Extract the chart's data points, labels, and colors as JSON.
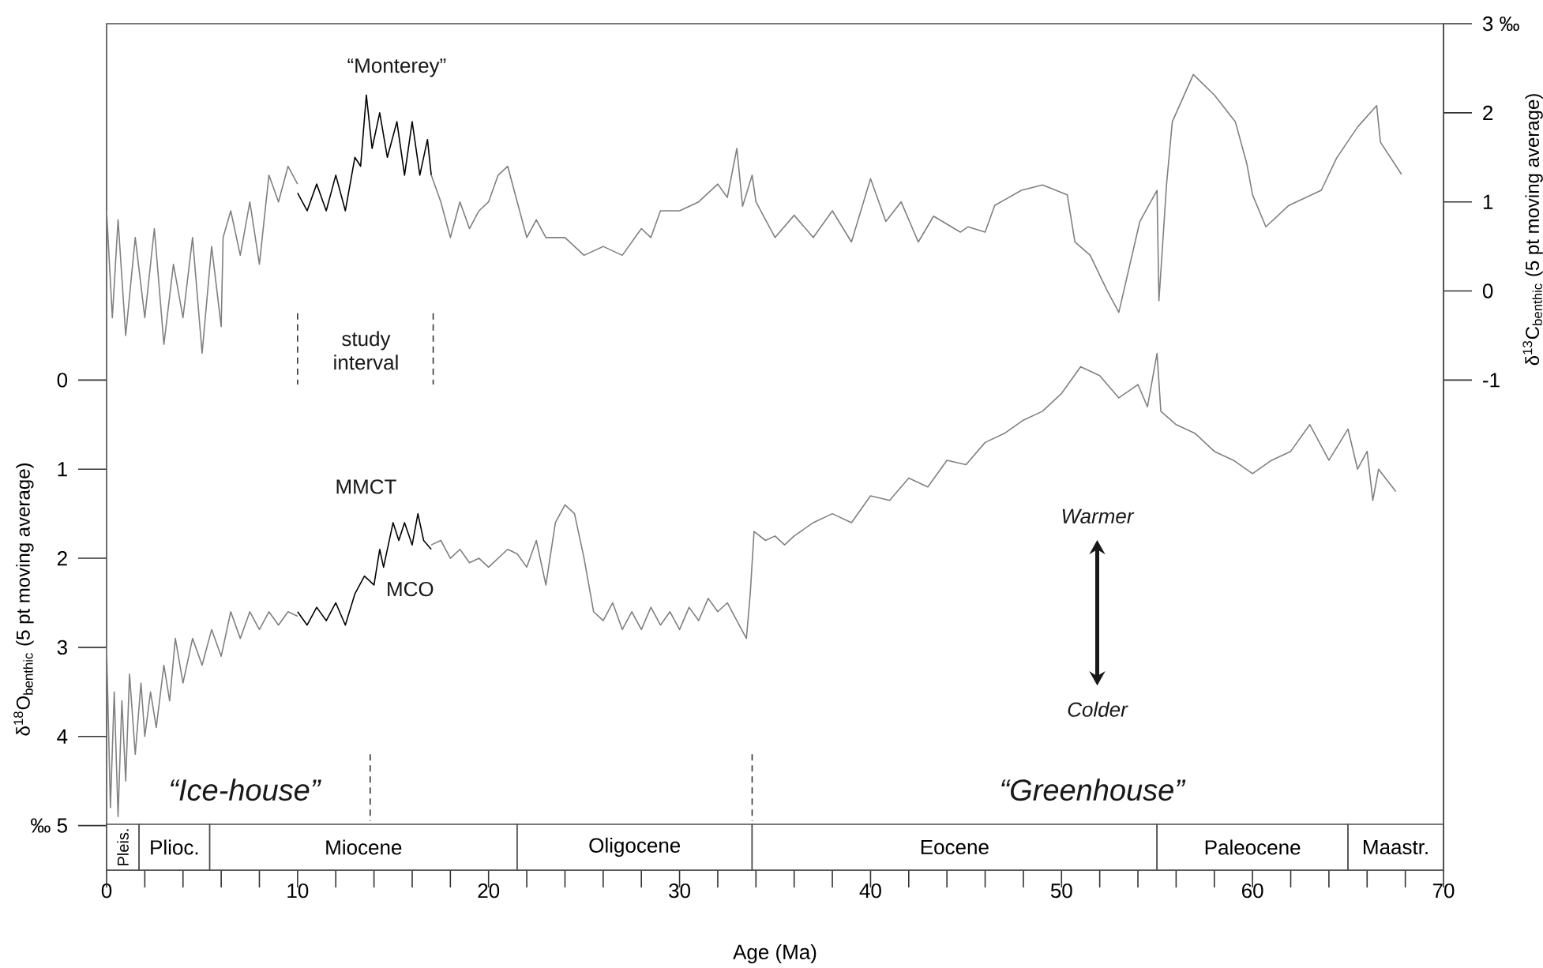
{
  "chart_data": {
    "type": "line",
    "xlabel": "Age (Ma)",
    "ylabel": "δ$^{18}$O$_{benthic}$ (5 pt moving average)",
    "y2label": "δ$^{13}$C$_{benthic}$ (5 pt moving average)",
    "xlim": [
      0,
      70
    ],
    "ylim": [
      5.5,
      -4
    ],
    "y2lim": [
      -6.5,
      3
    ],
    "xticks": [
      0,
      {
        "value": 2,
        "label": null
      },
      {
        "value": 4,
        "label": null
      },
      {
        "value": 6,
        "label": null
      },
      {
        "value": 8,
        "label": null
      },
      10,
      {
        "value": 12,
        "label": null
      },
      {
        "value": 14,
        "label": null
      },
      {
        "value": 16,
        "label": null
      },
      {
        "value": 18,
        "label": null
      },
      20,
      {
        "value": 22,
        "label": null
      },
      {
        "value": 24,
        "label": null
      },
      {
        "value": 26,
        "label": null
      },
      {
        "value": 28,
        "label": null
      },
      30,
      {
        "value": 32,
        "label": null
      },
      {
        "value": 34,
        "label": null
      },
      {
        "value": 36,
        "label": null
      },
      {
        "value": 38,
        "label": null
      },
      40,
      {
        "value": 42,
        "label": null
      },
      {
        "value": 44,
        "label": null
      },
      {
        "value": 46,
        "label": null
      },
      {
        "value": 48,
        "label": null
      },
      50,
      {
        "value": 52,
        "label": null
      },
      {
        "value": 54,
        "label": null
      },
      {
        "value": 56,
        "label": null
      },
      {
        "value": 58,
        "label": null
      },
      60,
      {
        "value": 62,
        "label": null
      },
      {
        "value": 64,
        "label": null
      },
      {
        "value": 66,
        "label": null
      },
      {
        "value": 68,
        "label": null
      },
      70
    ],
    "yticks": [
      0,
      1,
      2,
      3,
      4,
      {
        "value": 5,
        "label": "‰ 5"
      }
    ],
    "y2ticks": [
      -1,
      0,
      1,
      2,
      {
        "value": 3,
        "label": "3 ‰"
      }
    ],
    "series": [
      {
        "axis": "y",
        "color": "#808080",
        "x": [
          0,
          0.2,
          0.4,
          0.6,
          0.8,
          1.0,
          1.2,
          1.5,
          1.8,
          2.0,
          2.3,
          2.6,
          3.0,
          3.3,
          3.6,
          4.0,
          4.5,
          5.0,
          5.5,
          6.0,
          6.5,
          7.0,
          7.5,
          8.0,
          8.5,
          9,
          9.5,
          10
        ],
        "values": [
          3.0,
          4.8,
          3.5,
          4.9,
          3.6,
          4.5,
          3.3,
          4.2,
          3.4,
          4.0,
          3.5,
          3.9,
          3.2,
          3.6,
          2.9,
          3.4,
          2.9,
          3.2,
          2.8,
          3.1,
          2.6,
          2.9,
          2.6,
          2.8,
          2.6,
          2.75,
          2.6,
          2.65
        ]
      },
      {
        "axis": "y",
        "color": "#000000",
        "x": [
          10,
          10.5,
          11,
          11.5,
          12,
          12.5,
          13,
          13.5,
          14,
          14.3,
          14.5,
          15,
          15.3,
          15.6,
          16,
          16.3,
          16.6,
          17
        ],
        "values": [
          2.6,
          2.75,
          2.55,
          2.7,
          2.5,
          2.75,
          2.4,
          2.2,
          2.3,
          1.9,
          2.1,
          1.6,
          1.8,
          1.6,
          1.85,
          1.5,
          1.8,
          1.9
        ]
      },
      {
        "axis": "y",
        "color": "#808080",
        "x": [
          17,
          17.5,
          18,
          18.5,
          19,
          19.5,
          20,
          20.5,
          21,
          21.5,
          22,
          22.5,
          23,
          23.5,
          24,
          24.5,
          25,
          25.5,
          26,
          26.5,
          27,
          27.5,
          28,
          28.5,
          29,
          29.5,
          30,
          30.5,
          31,
          31.5,
          32,
          32.5,
          33,
          33.5,
          33.7,
          33.9,
          34.5,
          35,
          35.5,
          36,
          37,
          38,
          39,
          40,
          41,
          42,
          43,
          44,
          45,
          46,
          47,
          48,
          49,
          50,
          51,
          52,
          53,
          54,
          54.5,
          55,
          55.2,
          56,
          57,
          58,
          59,
          60,
          61,
          62,
          63,
          64,
          65,
          65.5,
          66,
          66.3,
          66.6,
          67.5
        ],
        "values": [
          1.85,
          1.8,
          2.0,
          1.9,
          2.05,
          2.0,
          2.1,
          2.0,
          1.9,
          1.95,
          2.1,
          1.8,
          2.3,
          1.6,
          1.4,
          1.5,
          2.0,
          2.6,
          2.7,
          2.5,
          2.8,
          2.6,
          2.8,
          2.55,
          2.75,
          2.6,
          2.8,
          2.55,
          2.7,
          2.45,
          2.6,
          2.5,
          2.7,
          2.9,
          2.4,
          1.7,
          1.8,
          1.75,
          1.85,
          1.75,
          1.6,
          1.5,
          1.6,
          1.3,
          1.35,
          1.1,
          1.2,
          0.9,
          0.95,
          0.7,
          0.6,
          0.45,
          0.35,
          0.15,
          -0.15,
          -0.05,
          0.2,
          0.05,
          0.3,
          -0.3,
          0.35,
          0.5,
          0.6,
          0.8,
          0.9,
          1.05,
          0.9,
          0.8,
          0.5,
          0.9,
          0.55,
          1.0,
          0.8,
          1.35,
          1.0,
          1.25
        ]
      },
      {
        "axis": "y2",
        "color": "#808080",
        "x": [
          0,
          0.3,
          0.6,
          1.0,
          1.5,
          2,
          2.5,
          3,
          3.5,
          4,
          4.5,
          5,
          5.5,
          6,
          6.1,
          6.5,
          7,
          7.5,
          8,
          8.5,
          9,
          9.5,
          10
        ],
        "values": [
          0.9,
          -0.3,
          0.8,
          -0.5,
          0.6,
          -0.3,
          0.7,
          -0.6,
          0.3,
          -0.3,
          0.6,
          -0.7,
          0.5,
          -0.4,
          0.6,
          0.9,
          0.4,
          1.0,
          0.3,
          1.3,
          1.0,
          1.4,
          1.2
        ]
      },
      {
        "axis": "y2",
        "color": "#000000",
        "x": [
          10,
          10.5,
          11,
          11.5,
          12,
          12.5,
          13,
          13.3,
          13.6,
          13.9,
          14.3,
          14.7,
          15.2,
          15.6,
          16,
          16.4,
          16.8,
          17
        ],
        "values": [
          1.1,
          0.9,
          1.2,
          0.9,
          1.3,
          0.9,
          1.5,
          1.4,
          2.2,
          1.6,
          2.0,
          1.5,
          1.9,
          1.3,
          1.9,
          1.3,
          1.7,
          1.3
        ]
      },
      {
        "axis": "y2",
        "color": "#808080",
        "x": [
          17,
          17.5,
          18,
          18.5,
          19,
          19.5,
          20,
          20.5,
          21,
          21.5,
          22,
          22.5,
          23,
          24,
          25,
          26,
          27,
          28,
          28.5,
          29,
          30,
          31,
          32,
          32.5,
          33,
          33.3,
          33.8,
          34,
          35,
          36,
          37,
          38,
          39,
          40,
          40.8,
          41.6,
          42.5,
          43.3,
          44.7,
          45.1,
          46,
          46.5,
          47.9,
          49,
          50.3,
          50.7,
          51.5,
          52.4,
          53,
          54.1,
          55,
          55.1,
          55.5,
          55.8,
          56.9,
          58,
          59.1,
          59.7,
          60,
          60.7,
          61.9,
          63.6,
          64.4,
          65.5,
          66.5,
          66.7,
          67.8
        ],
        "values": [
          1.3,
          1.0,
          0.6,
          1.0,
          0.7,
          0.9,
          1.0,
          1.3,
          1.4,
          1.0,
          0.6,
          0.8,
          0.6,
          0.6,
          0.4,
          0.5,
          0.4,
          0.7,
          0.6,
          0.9,
          0.9,
          1.0,
          1.2,
          1.05,
          1.6,
          0.95,
          1.3,
          1.0,
          0.6,
          0.85,
          0.6,
          0.9,
          0.55,
          1.26,
          0.78,
          1.0,
          0.55,
          0.84,
          0.66,
          0.72,
          0.66,
          0.96,
          1.13,
          1.19,
          1.08,
          0.55,
          0.4,
          0.0,
          -0.24,
          0.78,
          1.13,
          -0.11,
          1.2,
          1.9,
          2.43,
          2.2,
          1.9,
          1.43,
          1.08,
          0.72,
          0.96,
          1.13,
          1.49,
          1.84,
          2.08,
          1.67,
          1.31
        ]
      },
      {
        "axis": "y",
        "color": "#333333",
        "line_style": "dashed",
        "x": [
          10,
          10
        ],
        "values": [
          -0.75,
          0.05
        ]
      },
      {
        "axis": "y",
        "color": "#333333",
        "line_style": "dashed",
        "x": [
          17.1,
          17.1
        ],
        "values": [
          -0.75,
          0.05
        ]
      },
      {
        "axis": "y",
        "color": "#333333",
        "line_style": "dashed",
        "x": [
          13.8,
          13.8
        ],
        "values": [
          4.2,
          4.95
        ]
      },
      {
        "axis": "y",
        "color": "#333333",
        "line_style": "dashed",
        "x": [
          33.8,
          33.8
        ],
        "values": [
          4.2,
          4.95
        ]
      }
    ],
    "bands": [
      {
        "axis": "x",
        "from": 0,
        "to": 1.7,
        "label": "Pleis.",
        "color": "#ffffff"
      },
      {
        "axis": "x",
        "from": 1.7,
        "to": 5.4,
        "label": "Plioc.",
        "color": "#ffffff"
      },
      {
        "axis": "x",
        "from": 5.4,
        "to": 21.5,
        "label": "Miocene",
        "color": "#ffffff"
      },
      {
        "axis": "x",
        "from": 21.5,
        "to": 33.8,
        "label": "Oligocene",
        "color": "#ffffff"
      },
      {
        "axis": "x",
        "from": 33.8,
        "to": 55,
        "label": "Eocene",
        "color": "#ffffff"
      },
      {
        "axis": "x",
        "from": 55,
        "to": 65,
        "label": "Paleocene",
        "color": "#ffffff"
      },
      {
        "axis": "x",
        "from": 65,
        "to": 70,
        "label": "Maastr.",
        "color": "#ffffff"
      }
    ],
    "annotations": [
      "“Monterey”",
      "study interval",
      "MMCT",
      "MCO",
      "Warmer",
      "Colder",
      "“Ice-house”",
      "“Greenhouse”"
    ]
  }
}
